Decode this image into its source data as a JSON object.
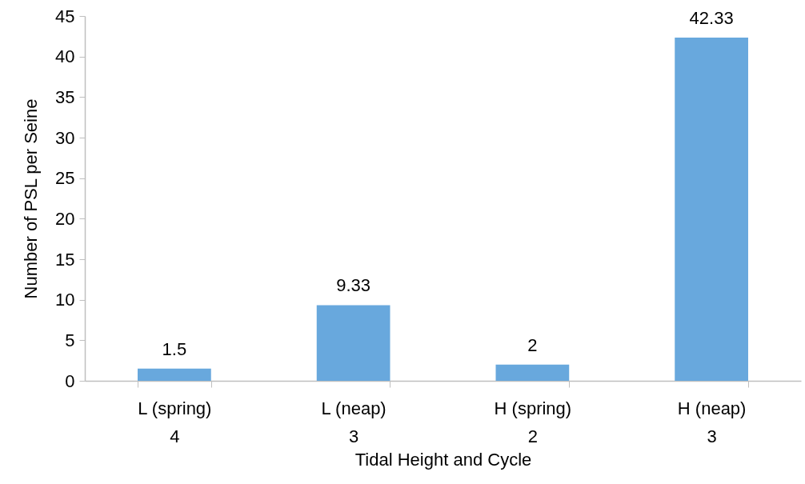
{
  "chart_data": {
    "type": "bar",
    "xlabel": "Tidal Height and Cycle",
    "ylabel": "Number of PSL per Seine",
    "categories": [
      "L (spring)\n4",
      "L (neap)\n3",
      "H (spring)\n2",
      "H (neap)\n3"
    ],
    "values": [
      1.5,
      9.33,
      2,
      42.33
    ],
    "color": "#68a8dd",
    "ylim": [
      0,
      45
    ],
    "yticks": [
      0,
      5,
      10,
      15,
      20,
      25,
      30,
      35,
      40,
      45
    ],
    "data_labels": true
  }
}
